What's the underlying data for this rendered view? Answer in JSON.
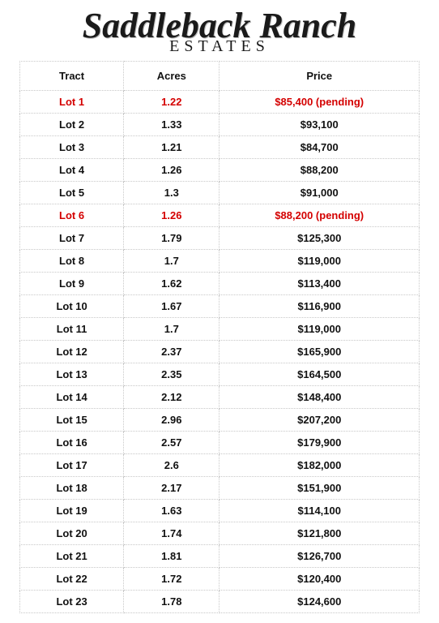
{
  "logo": {
    "line1": "Saddleback Ranch",
    "line2": "ESTATES"
  },
  "table": {
    "columns": [
      "Tract",
      "Acres",
      "Price"
    ],
    "pending_color": "#d40000",
    "text_color": "#111111",
    "border_color": "#c8c8c8",
    "rows": [
      {
        "tract": "Lot 1",
        "acres": "1.22",
        "price": "$85,400 (pending)",
        "pending": true
      },
      {
        "tract": "Lot 2",
        "acres": "1.33",
        "price": "$93,100",
        "pending": false
      },
      {
        "tract": "Lot 3",
        "acres": "1.21",
        "price": "$84,700",
        "pending": false
      },
      {
        "tract": "Lot 4",
        "acres": "1.26",
        "price": "$88,200",
        "pending": false
      },
      {
        "tract": "Lot 5",
        "acres": "1.3",
        "price": "$91,000",
        "pending": false
      },
      {
        "tract": "Lot 6",
        "acres": "1.26",
        "price": "$88,200 (pending)",
        "pending": true
      },
      {
        "tract": "Lot 7",
        "acres": "1.79",
        "price": "$125,300",
        "pending": false
      },
      {
        "tract": "Lot 8",
        "acres": "1.7",
        "price": "$119,000",
        "pending": false
      },
      {
        "tract": "Lot 9",
        "acres": "1.62",
        "price": "$113,400",
        "pending": false
      },
      {
        "tract": "Lot 10",
        "acres": "1.67",
        "price": "$116,900",
        "pending": false
      },
      {
        "tract": "Lot 11",
        "acres": "1.7",
        "price": "$119,000",
        "pending": false
      },
      {
        "tract": "Lot 12",
        "acres": "2.37",
        "price": "$165,900",
        "pending": false
      },
      {
        "tract": "Lot 13",
        "acres": "2.35",
        "price": "$164,500",
        "pending": false
      },
      {
        "tract": "Lot 14",
        "acres": "2.12",
        "price": "$148,400",
        "pending": false
      },
      {
        "tract": "Lot 15",
        "acres": "2.96",
        "price": "$207,200",
        "pending": false
      },
      {
        "tract": "Lot 16",
        "acres": "2.57",
        "price": "$179,900",
        "pending": false
      },
      {
        "tract": "Lot 17",
        "acres": "2.6",
        "price": "$182,000",
        "pending": false
      },
      {
        "tract": "Lot 18",
        "acres": "2.17",
        "price": "$151,900",
        "pending": false
      },
      {
        "tract": "Lot 19",
        "acres": "1.63",
        "price": "$114,100",
        "pending": false
      },
      {
        "tract": "Lot 20",
        "acres": "1.74",
        "price": "$121,800",
        "pending": false
      },
      {
        "tract": "Lot 21",
        "acres": "1.81",
        "price": "$126,700",
        "pending": false
      },
      {
        "tract": "Lot 22",
        "acres": "1.72",
        "price": "$120,400",
        "pending": false
      },
      {
        "tract": "Lot 23",
        "acres": "1.78",
        "price": "$124,600",
        "pending": false
      }
    ]
  }
}
